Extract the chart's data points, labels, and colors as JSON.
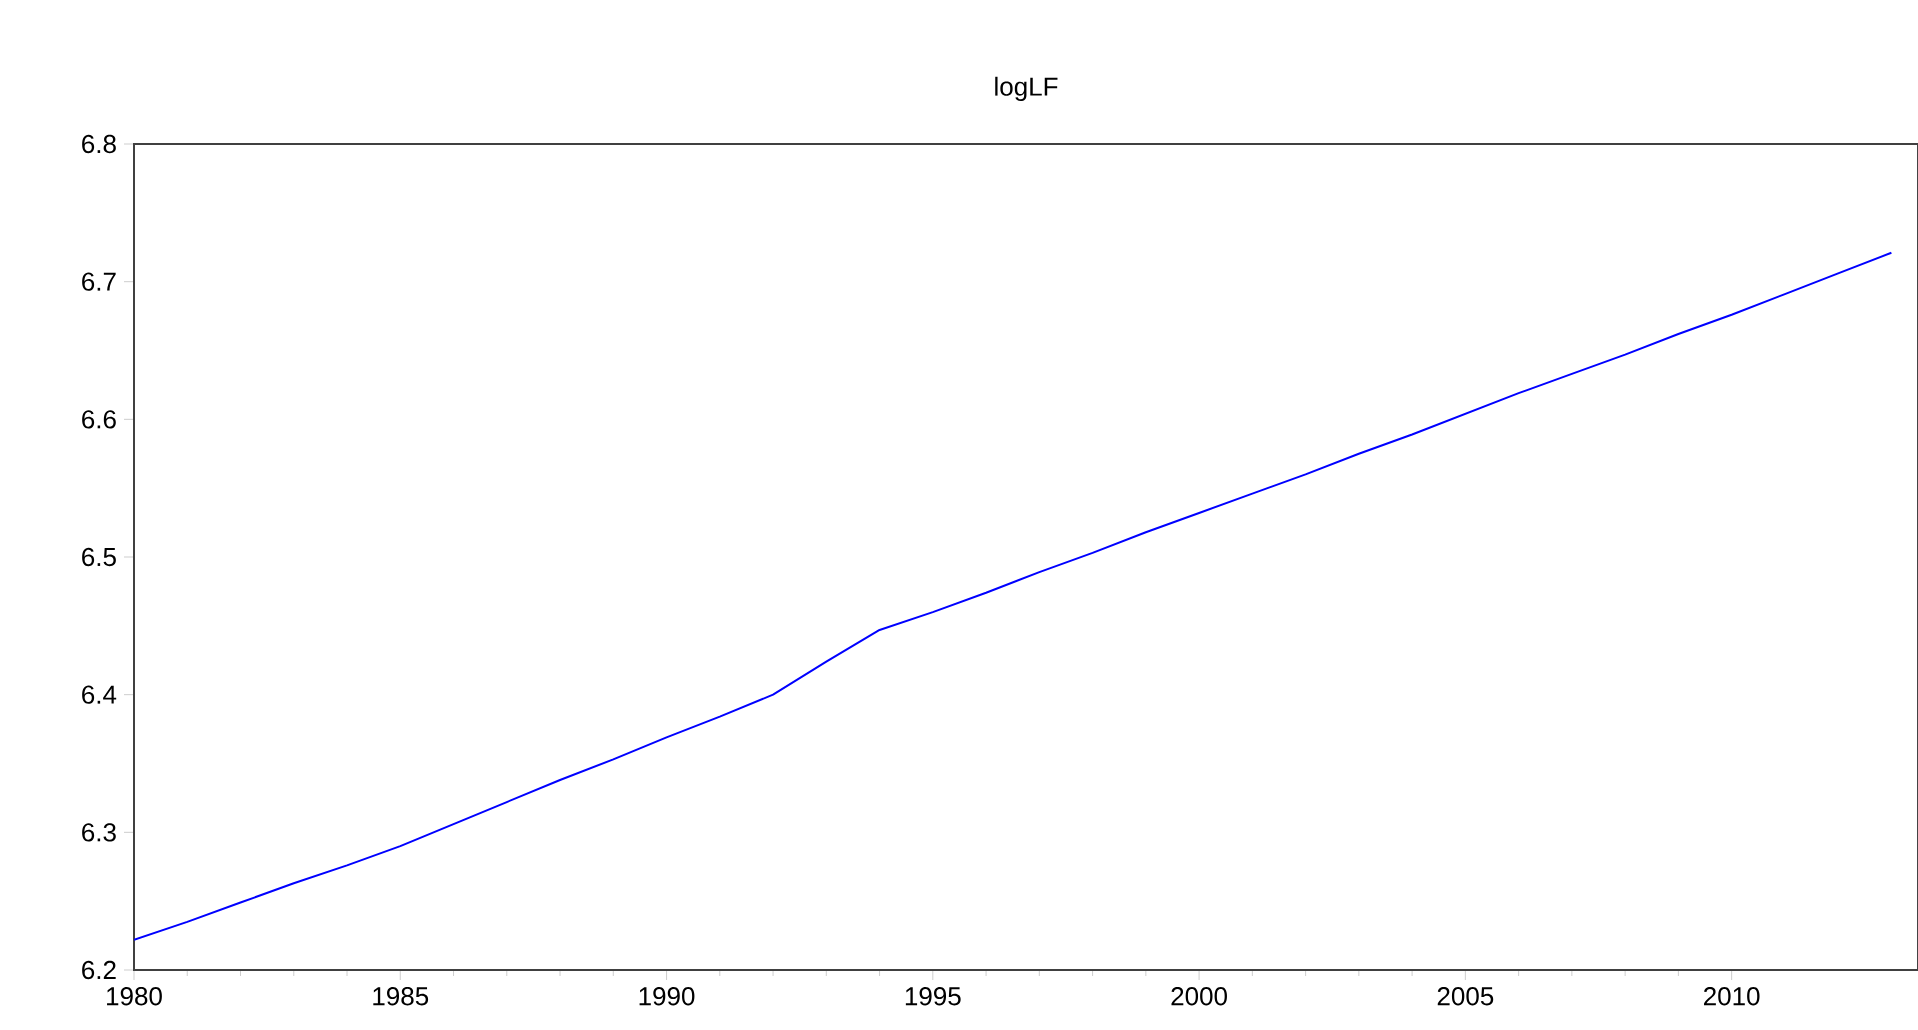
{
  "chart_data": {
    "type": "line",
    "title": "logLF",
    "x": [
      1980,
      1981,
      1982,
      1983,
      1984,
      1985,
      1986,
      1987,
      1988,
      1989,
      1990,
      1991,
      1992,
      1993,
      1994,
      1995,
      1996,
      1997,
      1998,
      1999,
      2000,
      2001,
      2002,
      2003,
      2004,
      2005,
      2006,
      2007,
      2008,
      2009,
      2010,
      2011,
      2012,
      2013
    ],
    "series": [
      {
        "color": "#0000ff",
        "values": [
          6.222,
          6.235,
          6.249,
          6.263,
          6.276,
          6.29,
          6.306,
          6.322,
          6.338,
          6.353,
          6.369,
          6.384,
          6.4,
          6.424,
          6.447,
          6.46,
          6.474,
          6.489,
          6.503,
          6.518,
          6.532,
          6.546,
          6.56,
          6.575,
          6.589,
          6.604,
          6.619,
          6.633,
          6.647,
          6.662,
          6.676,
          6.691,
          6.706,
          6.721
        ]
      }
    ],
    "xlim": [
      1980,
      2013.5
    ],
    "ylim": [
      6.2,
      6.8
    ],
    "xticks": [
      1980,
      1985,
      1990,
      1995,
      2000,
      2005,
      2010
    ],
    "yticks": [
      6.2,
      6.3,
      6.4,
      6.5,
      6.6,
      6.7,
      6.8
    ],
    "grid": false,
    "marker": "none",
    "line_style": "solid"
  }
}
